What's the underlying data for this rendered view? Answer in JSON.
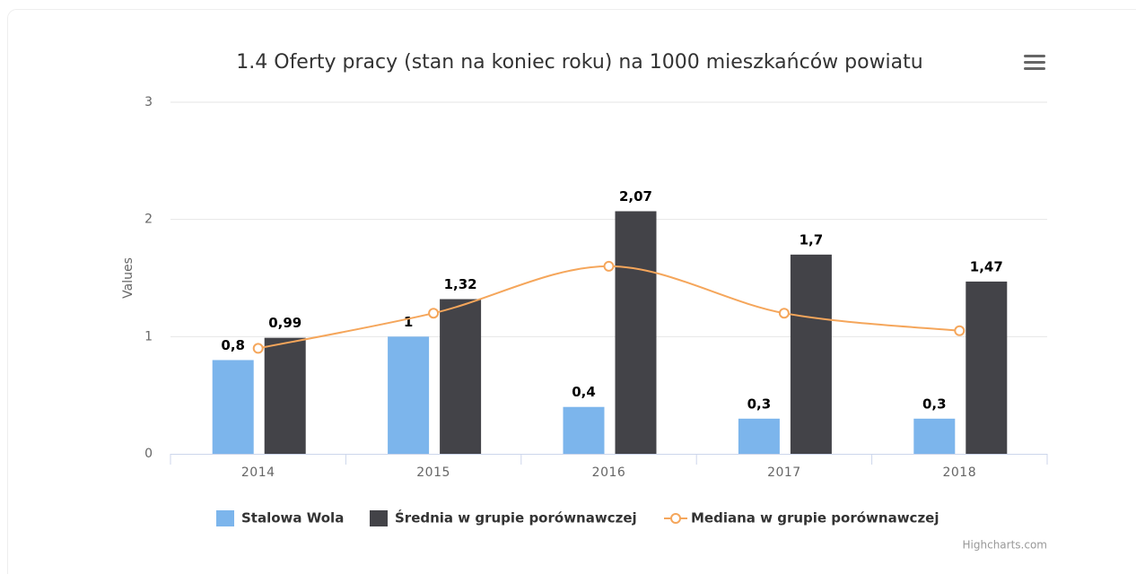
{
  "chart_data": {
    "type": "bar",
    "title": "1.4 Oferty pracy (stan na koniec roku) na 1000 mieszkańców powiatu",
    "y_label": "Values",
    "credits": "Highcharts.com",
    "categories": [
      "2014",
      "2015",
      "2016",
      "2017",
      "2018"
    ],
    "ylim": [
      0,
      3
    ],
    "yticks": [
      0,
      1,
      2,
      3
    ],
    "grid": true,
    "series": [
      {
        "name": "Stalowa Wola",
        "type": "bar",
        "color": "#7cb5ec",
        "values": [
          0.8,
          1,
          0.4,
          0.3,
          0.3
        ],
        "value_labels": [
          "0,8",
          "1",
          "0,4",
          "0,3",
          "0,3"
        ]
      },
      {
        "name": "Średnia w grupie porównawczej",
        "type": "bar",
        "color": "#434348",
        "values": [
          0.99,
          1.32,
          2.07,
          1.7,
          1.47
        ],
        "value_labels": [
          "0,99",
          "1,32",
          "2,07",
          "1,7",
          "1,47"
        ]
      },
      {
        "name": "Mediana w grupie porównawczej",
        "type": "line",
        "color": "#f5a65b",
        "values": [
          0.9,
          1.2,
          1.6,
          1.2,
          1.05
        ]
      }
    ]
  }
}
